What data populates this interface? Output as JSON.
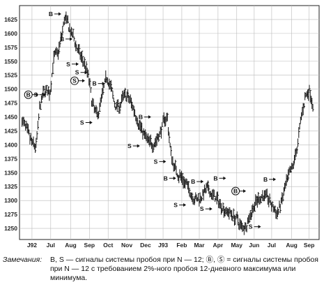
{
  "chart_data": {
    "type": "bar",
    "subtype": "ohlc-price",
    "title": "",
    "xlabel": "",
    "ylabel": "",
    "ylim": [
      1230,
      1650
    ],
    "y_ticks": [
      1250,
      1275,
      1300,
      1325,
      1350,
      1375,
      1400,
      1425,
      1450,
      1475,
      1500,
      1525,
      1550,
      1575,
      1600,
      1625
    ],
    "grid": true,
    "x_ticks": [
      "J92",
      "Jul",
      "Aug",
      "Sep",
      "Oct",
      "Nov",
      "Dec",
      "J93",
      "Feb",
      "Mar",
      "Apr",
      "May",
      "Jun",
      "Jul",
      "Aug",
      "Sep"
    ],
    "x_tick_pos": [
      1.0,
      2.5,
      4.1,
      5.6,
      7.1,
      8.6,
      10.1,
      11.5,
      13.0,
      14.4,
      15.9,
      17.4,
      18.8,
      20.2,
      21.8,
      23.2
    ],
    "xlim": [
      0,
      24
    ],
    "path": [
      [
        0.2,
        1445
      ],
      [
        0.6,
        1420
      ],
      [
        1.0,
        1400
      ],
      [
        1.3,
        1395
      ],
      [
        1.6,
        1470
      ],
      [
        2.0,
        1500
      ],
      [
        2.4,
        1490
      ],
      [
        2.7,
        1560
      ],
      [
        3.0,
        1560
      ],
      [
        3.3,
        1590
      ],
      [
        3.6,
        1630
      ],
      [
        4.0,
        1605
      ],
      [
        4.4,
        1585
      ],
      [
        4.8,
        1560
      ],
      [
        5.2,
        1545
      ],
      [
        5.5,
        1520
      ],
      [
        5.8,
        1470
      ],
      [
        6.2,
        1450
      ],
      [
        6.6,
        1490
      ],
      [
        7.0,
        1525
      ],
      [
        7.3,
        1500
      ],
      [
        7.6,
        1470
      ],
      [
        8.0,
        1470
      ],
      [
        8.4,
        1490
      ],
      [
        8.8,
        1480
      ],
      [
        9.2,
        1460
      ],
      [
        9.6,
        1435
      ],
      [
        10.0,
        1415
      ],
      [
        10.4,
        1400
      ],
      [
        10.8,
        1405
      ],
      [
        11.2,
        1420
      ],
      [
        11.5,
        1440
      ],
      [
        11.8,
        1455
      ],
      [
        12.0,
        1400
      ],
      [
        12.2,
        1370
      ],
      [
        12.6,
        1350
      ],
      [
        13.0,
        1340
      ],
      [
        13.4,
        1325
      ],
      [
        13.8,
        1310
      ],
      [
        14.2,
        1300
      ],
      [
        14.6,
        1310
      ],
      [
        15.0,
        1320
      ],
      [
        15.4,
        1310
      ],
      [
        15.8,
        1300
      ],
      [
        16.2,
        1290
      ],
      [
        16.6,
        1280
      ],
      [
        17.0,
        1275
      ],
      [
        17.4,
        1265
      ],
      [
        17.8,
        1250
      ],
      [
        18.2,
        1260
      ],
      [
        18.6,
        1285
      ],
      [
        19.0,
        1300
      ],
      [
        19.4,
        1310
      ],
      [
        19.8,
        1305
      ],
      [
        20.2,
        1290
      ],
      [
        20.6,
        1275
      ],
      [
        21.0,
        1300
      ],
      [
        21.4,
        1335
      ],
      [
        21.8,
        1355
      ],
      [
        22.2,
        1395
      ],
      [
        22.6,
        1460
      ],
      [
        22.9,
        1490
      ],
      [
        23.2,
        1500
      ],
      [
        23.5,
        1470
      ]
    ],
    "signals": [
      {
        "label": "B",
        "circled": true,
        "x": 1.6,
        "y": 1490
      },
      {
        "label": "S",
        "circled": false,
        "x": 2.2,
        "y": 1490
      },
      {
        "label": "B",
        "circled": false,
        "x": 3.4,
        "y": 1635
      },
      {
        "label": "B",
        "circled": false,
        "x": 4.3,
        "y": 1590
      },
      {
        "label": "S",
        "circled": false,
        "x": 4.8,
        "y": 1545
      },
      {
        "label": "S",
        "circled": true,
        "x": 5.3,
        "y": 1515
      },
      {
        "label": "S",
        "circled": false,
        "x": 5.5,
        "y": 1530
      },
      {
        "label": "B",
        "circled": false,
        "x": 6.9,
        "y": 1510
      },
      {
        "label": "S",
        "circled": false,
        "x": 5.9,
        "y": 1440
      },
      {
        "label": "B",
        "circled": false,
        "x": 10.6,
        "y": 1450
      },
      {
        "label": "S",
        "circled": false,
        "x": 9.7,
        "y": 1398
      },
      {
        "label": "B",
        "circled": false,
        "x": 12.6,
        "y": 1340
      },
      {
        "label": "S",
        "circled": false,
        "x": 11.8,
        "y": 1370
      },
      {
        "label": "B",
        "circled": false,
        "x": 14.8,
        "y": 1334
      },
      {
        "label": "S",
        "circled": false,
        "x": 13.4,
        "y": 1292
      },
      {
        "label": "B",
        "circled": false,
        "x": 16.6,
        "y": 1340
      },
      {
        "label": "S",
        "circled": false,
        "x": 15.5,
        "y": 1285
      },
      {
        "label": "B",
        "circled": true,
        "x": 18.2,
        "y": 1317
      },
      {
        "label": "S",
        "circled": false,
        "x": 19.4,
        "y": 1253
      },
      {
        "label": "B",
        "circled": false,
        "x": 20.6,
        "y": 1338
      }
    ]
  },
  "note": {
    "label": "Замечания:",
    "text": "B, S — сигналы системы пробоя при N — 12; Ⓑ, Ⓢ = сигналы системы пробоя при N — 12 с требованием 2%-ного пробоя 12-дневного максимума или минимума."
  }
}
